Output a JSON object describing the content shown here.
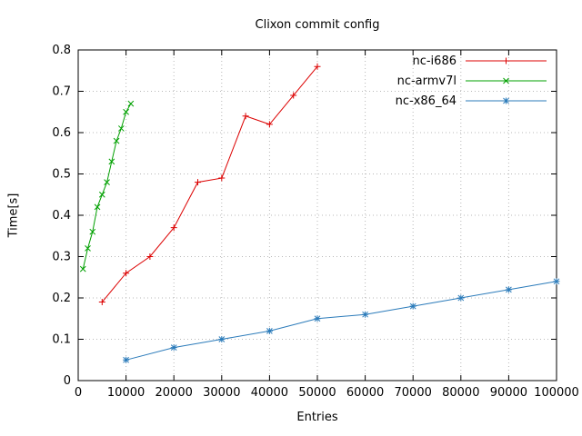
{
  "chart_data": {
    "type": "line",
    "title": "Clixon commit config",
    "xlabel": "Entries",
    "ylabel": "Time[s]",
    "xlim": [
      0,
      100000
    ],
    "ylim": [
      0,
      0.8
    ],
    "x_ticks": [
      0,
      10000,
      20000,
      30000,
      40000,
      50000,
      60000,
      70000,
      80000,
      90000,
      100000
    ],
    "y_ticks": [
      0,
      0.1,
      0.2,
      0.3,
      0.4,
      0.5,
      0.6,
      0.7,
      0.8
    ],
    "grid": true,
    "legend_position": "top-right-inside",
    "series": [
      {
        "name": "nc-i686",
        "color": "#dc0000",
        "marker": "plus",
        "x": [
          5000,
          10000,
          15000,
          20000,
          25000,
          30000,
          35000,
          40000,
          45000,
          50000
        ],
        "y": [
          0.19,
          0.26,
          0.3,
          0.37,
          0.48,
          0.49,
          0.64,
          0.62,
          0.69,
          0.76
        ]
      },
      {
        "name": "nc-armv7l",
        "color": "#00a000",
        "marker": "cross",
        "x": [
          1000,
          2000,
          3000,
          4000,
          5000,
          6000,
          7000,
          8000,
          9000,
          10000,
          11000
        ],
        "y": [
          0.27,
          0.32,
          0.36,
          0.42,
          0.45,
          0.48,
          0.53,
          0.58,
          0.61,
          0.65,
          0.67
        ]
      },
      {
        "name": "nc-x86_64",
        "color": "#2b7bba",
        "marker": "asterisk",
        "x": [
          10000,
          20000,
          30000,
          40000,
          50000,
          60000,
          70000,
          80000,
          90000,
          100000
        ],
        "y": [
          0.05,
          0.08,
          0.1,
          0.12,
          0.15,
          0.16,
          0.18,
          0.2,
          0.22,
          0.24
        ]
      }
    ]
  }
}
